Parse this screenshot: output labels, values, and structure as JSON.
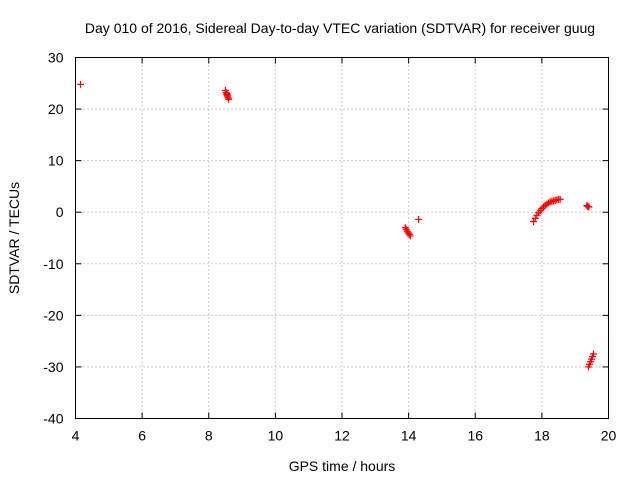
{
  "chart_data": {
    "type": "scatter",
    "title": "Day 010 of 2016, Sidereal Day-to-day VTEC variation (SDTVAR) for receiver guug",
    "xlabel": "GPS time / hours",
    "ylabel": "SDTVAR / TECUs",
    "xlim": [
      4,
      20
    ],
    "ylim": [
      -40,
      30
    ],
    "xticks": [
      4,
      6,
      8,
      10,
      12,
      14,
      16,
      18,
      20
    ],
    "yticks": [
      -40,
      -30,
      -20,
      -10,
      0,
      10,
      20,
      30
    ],
    "grid": true,
    "marker": "+",
    "color": "#ff0000",
    "series": [
      {
        "x": [
          4.15,
          8.5,
          8.52,
          8.54,
          8.56,
          8.58,
          8.6,
          8.55,
          8.57,
          13.9,
          13.93,
          13.96,
          13.99,
          14.02,
          14.05,
          14.3,
          17.75,
          17.8,
          17.85,
          17.9,
          17.95,
          18.0,
          18.05,
          18.1,
          18.15,
          18.2,
          18.25,
          18.3,
          18.35,
          18.4,
          18.45,
          18.5,
          18.55,
          19.35,
          19.38,
          19.41,
          19.4,
          19.43,
          19.46,
          19.49,
          19.52,
          19.55
        ],
        "y": [
          24.8,
          23.6,
          23.2,
          22.8,
          22.5,
          22.2,
          21.9,
          23.0,
          22.6,
          -3.0,
          -3.3,
          -3.7,
          -4.0,
          -4.3,
          -4.6,
          -1.4,
          -1.8,
          -1.2,
          -0.6,
          -0.1,
          0.3,
          0.7,
          1.0,
          1.3,
          1.6,
          1.8,
          2.0,
          2.1,
          2.2,
          2.3,
          2.4,
          2.5,
          2.5,
          1.3,
          1.1,
          1.0,
          -30.0,
          -29.5,
          -29.0,
          -28.5,
          -28.0,
          -27.5
        ]
      }
    ]
  }
}
